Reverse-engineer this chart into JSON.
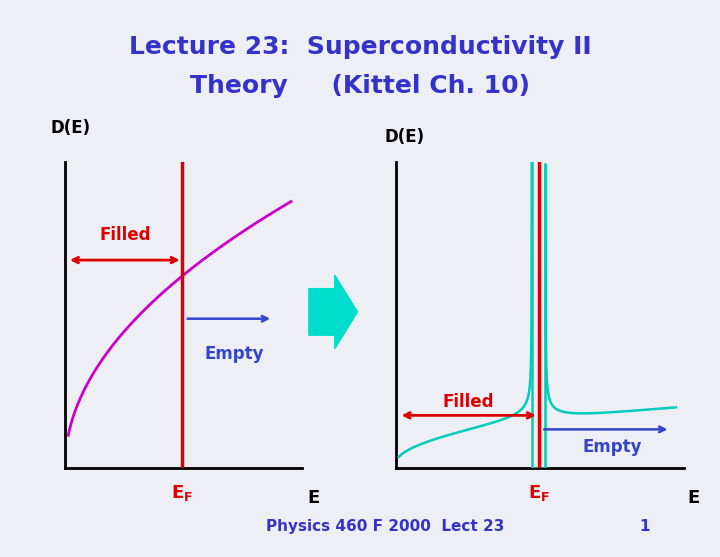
{
  "title_line1": "Lecture 23:  Superconductivity II",
  "title_line2": "Theory     (Kittel Ch. 10)",
  "title_color": "#3333cc",
  "title_fontsize": 18,
  "background_color": "#eeeef5",
  "footer_text": "Physics 460 F 2000  Lect 23",
  "footer_number": "1",
  "footer_color": "#3333cc",
  "footer_fontsize": 11,
  "de_label": "D(E)",
  "e_label": "E",
  "filled_label": "Filled",
  "empty_label": "Empty",
  "label_color_red": "#dd0000",
  "label_color_blue": "#3344cc",
  "curve_color_normal": "#cc00cc",
  "curve_color_sc": "#00ccbb",
  "ef_line_color": "#dd0000",
  "arrow_fill_color": "#00ddcc"
}
